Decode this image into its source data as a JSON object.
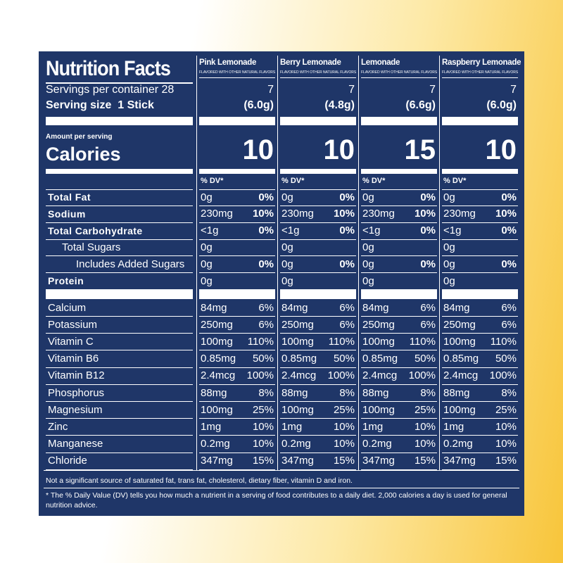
{
  "title": "Nutrition Facts",
  "servings_label": "Servings per container 28",
  "serving_size_label": "Serving size  1 Stick",
  "amount_per_serving": "Amount per serving",
  "calories_label": "Calories",
  "dv_header": "% DV*",
  "products": [
    {
      "name": "Pink Lemonade",
      "subtitle": "FLAVORED WITH OTHER NATURAL FLAVORS",
      "servings": "7",
      "size": "(6.0g)",
      "calories": "10"
    },
    {
      "name": "Berry Lemonade",
      "subtitle": "FLAVORED WITH OTHER NATURAL FLAVORS",
      "servings": "7",
      "size": "(4.8g)",
      "calories": "10"
    },
    {
      "name": "Lemonade",
      "subtitle": "FLAVORED WITH OTHER NATURAL FLAVORS",
      "servings": "7",
      "size": "(6.6g)",
      "calories": "15"
    },
    {
      "name": "Raspberry Lemonade",
      "subtitle": "FLAVORED WITH OTHER NATURAL FLAVORS",
      "servings": "7",
      "size": "(6.0g)",
      "calories": "10"
    }
  ],
  "macros": [
    {
      "label": "Total Fat",
      "bold": true,
      "level": 0,
      "amounts": [
        {
          "amount": "0g",
          "dv": "0%"
        },
        {
          "amount": "0g",
          "dv": "0%"
        },
        {
          "amount": "0g",
          "dv": "0%"
        },
        {
          "amount": "0g",
          "dv": "0%"
        }
      ]
    },
    {
      "label": "Sodium",
      "bold": true,
      "level": 0,
      "amounts": [
        {
          "amount": "230mg",
          "dv": "10%"
        },
        {
          "amount": "230mg",
          "dv": "10%"
        },
        {
          "amount": "230mg",
          "dv": "10%"
        },
        {
          "amount": "230mg",
          "dv": "10%"
        }
      ]
    },
    {
      "label": "Total Carbohydrate",
      "bold": true,
      "level": 0,
      "amounts": [
        {
          "amount": "<1g",
          "dv": "0%"
        },
        {
          "amount": "<1g",
          "dv": "0%"
        },
        {
          "amount": "<1g",
          "dv": "0%"
        },
        {
          "amount": "<1g",
          "dv": "0%"
        }
      ]
    },
    {
      "label": "Total Sugars",
      "bold": false,
      "level": 1,
      "amounts": [
        {
          "amount": "0g"
        },
        {
          "amount": "0g"
        },
        {
          "amount": "0g"
        },
        {
          "amount": "0g"
        }
      ]
    },
    {
      "label": "Includes Added Sugars",
      "bold": false,
      "level": 2,
      "amounts": [
        {
          "amount": "0g",
          "dv": "0%"
        },
        {
          "amount": "0g",
          "dv": "0%"
        },
        {
          "amount": "0g",
          "dv": "0%"
        },
        {
          "amount": "0g",
          "dv": "0%"
        }
      ]
    },
    {
      "label": "Protein",
      "bold": true,
      "level": 0,
      "amounts": [
        {
          "amount": "0g"
        },
        {
          "amount": "0g"
        },
        {
          "amount": "0g"
        },
        {
          "amount": "0g"
        }
      ]
    }
  ],
  "micros": [
    {
      "label": "Calcium",
      "amounts": [
        {
          "amount": "84mg",
          "dv": "6%"
        },
        {
          "amount": "84mg",
          "dv": "6%"
        },
        {
          "amount": "84mg",
          "dv": "6%"
        },
        {
          "amount": "84mg",
          "dv": "6%"
        }
      ]
    },
    {
      "label": "Potassium",
      "amounts": [
        {
          "amount": "250mg",
          "dv": "6%"
        },
        {
          "amount": "250mg",
          "dv": "6%"
        },
        {
          "amount": "250mg",
          "dv": "6%"
        },
        {
          "amount": "250mg",
          "dv": "6%"
        }
      ]
    },
    {
      "label": "Vitamin C",
      "amounts": [
        {
          "amount": "100mg",
          "dv": "110%"
        },
        {
          "amount": "100mg",
          "dv": "110%"
        },
        {
          "amount": "100mg",
          "dv": "110%"
        },
        {
          "amount": "100mg",
          "dv": "110%"
        }
      ]
    },
    {
      "label": "Vitamin B6",
      "amounts": [
        {
          "amount": "0.85mg",
          "dv": "50%"
        },
        {
          "amount": "0.85mg",
          "dv": "50%"
        },
        {
          "amount": "0.85mg",
          "dv": "50%"
        },
        {
          "amount": "0.85mg",
          "dv": "50%"
        }
      ]
    },
    {
      "label": "Vitamin B12",
      "amounts": [
        {
          "amount": "2.4mcg",
          "dv": "100%"
        },
        {
          "amount": "2.4mcg",
          "dv": "100%"
        },
        {
          "amount": "2.4mcg",
          "dv": "100%"
        },
        {
          "amount": "2.4mcg",
          "dv": "100%"
        }
      ]
    },
    {
      "label": "Phosphorus",
      "amounts": [
        {
          "amount": "88mg",
          "dv": "8%"
        },
        {
          "amount": "88mg",
          "dv": "8%"
        },
        {
          "amount": "88mg",
          "dv": "8%"
        },
        {
          "amount": "88mg",
          "dv": "8%"
        }
      ]
    },
    {
      "label": "Magnesium",
      "amounts": [
        {
          "amount": "100mg",
          "dv": "25%"
        },
        {
          "amount": "100mg",
          "dv": "25%"
        },
        {
          "amount": "100mg",
          "dv": "25%"
        },
        {
          "amount": "100mg",
          "dv": "25%"
        }
      ]
    },
    {
      "label": "Zinc",
      "amounts": [
        {
          "amount": "1mg",
          "dv": "10%"
        },
        {
          "amount": "1mg",
          "dv": "10%"
        },
        {
          "amount": "1mg",
          "dv": "10%"
        },
        {
          "amount": "1mg",
          "dv": "10%"
        }
      ]
    },
    {
      "label": "Manganese",
      "amounts": [
        {
          "amount": "0.2mg",
          "dv": "10%"
        },
        {
          "amount": "0.2mg",
          "dv": "10%"
        },
        {
          "amount": "0.2mg",
          "dv": "10%"
        },
        {
          "amount": "0.2mg",
          "dv": "10%"
        }
      ]
    },
    {
      "label": "Chloride",
      "amounts": [
        {
          "amount": "347mg",
          "dv": "15%"
        },
        {
          "amount": "347mg",
          "dv": "15%"
        },
        {
          "amount": "347mg",
          "dv": "15%"
        },
        {
          "amount": "347mg",
          "dv": "15%"
        }
      ]
    }
  ],
  "footnotes": [
    "Not a significant source of saturated fat, trans fat, cholesterol, dietary fiber, vitamin D and iron.",
    "* The % Daily Value (DV) tells you how much a nutrient in a serving of food contributes to a daily diet. 2,000 calories a day is used for general nutrition advice."
  ]
}
